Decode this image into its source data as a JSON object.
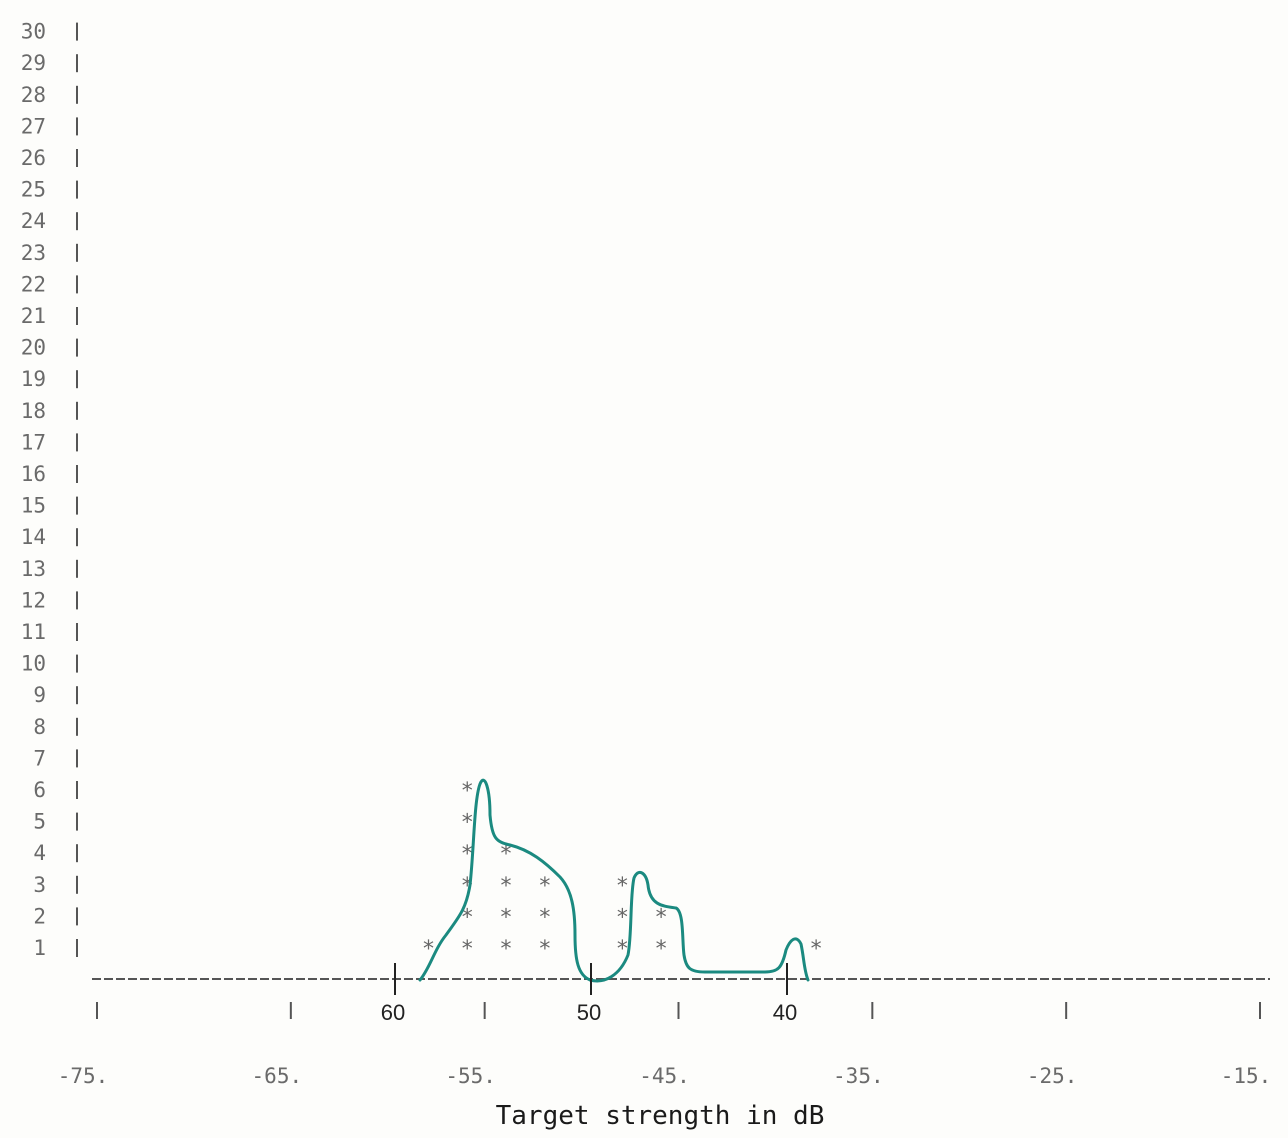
{
  "chart_data": {
    "type": "bar",
    "xlabel": "Target strength in dB",
    "ylabel": "",
    "yticks": [
      "1",
      "2",
      "3",
      "4",
      "5",
      "6",
      "7",
      "8",
      "9",
      "10",
      "11",
      "12",
      "13",
      "14",
      "15",
      "16",
      "17",
      "18",
      "19",
      "20",
      "21",
      "22",
      "23",
      "24",
      "25",
      "26",
      "27",
      "28",
      "29",
      "30"
    ],
    "ylim": [
      0,
      30
    ],
    "xlim": [
      -75,
      -15
    ],
    "xticks": [
      "-75.",
      "-65.",
      "-55.",
      "-45.",
      "-35.",
      "-25.",
      "-15."
    ],
    "x": [
      -60,
      -58,
      -56,
      -54,
      -52,
      -48,
      -46,
      -38
    ],
    "values": [
      0,
      1,
      6,
      4,
      3,
      3,
      2,
      1
    ],
    "annotations": {
      "hand_labels": [
        "60",
        "50",
        "40"
      ],
      "hand_label_x": [
        -60,
        -50,
        -40
      ],
      "outline_color": "#1b8a80"
    },
    "marker_symbol": "*",
    "grid": false
  }
}
